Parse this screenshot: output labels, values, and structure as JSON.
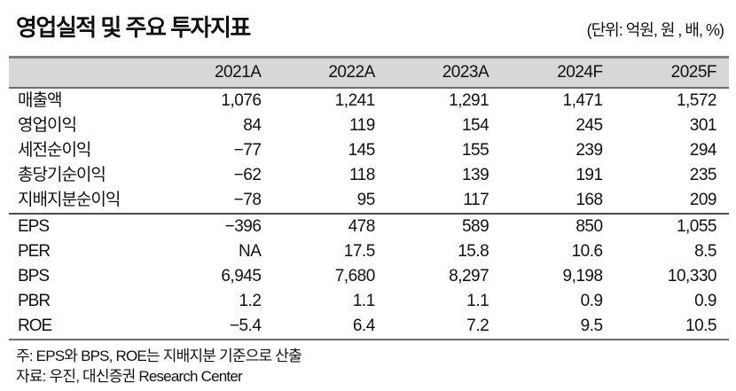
{
  "header": {
    "title": "영업실적 및 주요 투자지표",
    "units": "(단위: 억원, 원 , 배, %)"
  },
  "table": {
    "columns": [
      "2021A",
      "2022A",
      "2023A",
      "2024F",
      "2025F"
    ],
    "sections": [
      {
        "rows": [
          {
            "label": "매출액",
            "values": [
              "1,076",
              "1,241",
              "1,291",
              "1,471",
              "1,572"
            ]
          },
          {
            "label": "영업이익",
            "values": [
              "84",
              "119",
              "154",
              "245",
              "301"
            ]
          },
          {
            "label": "세전순이익",
            "values": [
              "−77",
              "145",
              "155",
              "239",
              "294"
            ]
          },
          {
            "label": "총당기순이익",
            "values": [
              "−62",
              "118",
              "139",
              "191",
              "235"
            ]
          },
          {
            "label": "지배지분순이익",
            "values": [
              "−78",
              "95",
              "117",
              "168",
              "209"
            ]
          }
        ]
      },
      {
        "rows": [
          {
            "label": "EPS",
            "values": [
              "−396",
              "478",
              "589",
              "850",
              "1,055"
            ]
          },
          {
            "label": "PER",
            "values": [
              "NA",
              "17.5",
              "15.8",
              "10.6",
              "8.5"
            ]
          },
          {
            "label": "BPS",
            "values": [
              "6,945",
              "7,680",
              "8,297",
              "9,198",
              "10,330"
            ]
          },
          {
            "label": "PBR",
            "values": [
              "1.2",
              "1.1",
              "1.1",
              "0.9",
              "0.9"
            ]
          },
          {
            "label": "ROE",
            "values": [
              "−5.4",
              "6.4",
              "7.2",
              "9.5",
              "10.5"
            ]
          }
        ]
      }
    ]
  },
  "footnotes": {
    "note": "주: EPS와 BPS, ROE는 지배지분 기준으로 산출",
    "source": "자료: 우진, 대신증권 Research Center"
  }
}
